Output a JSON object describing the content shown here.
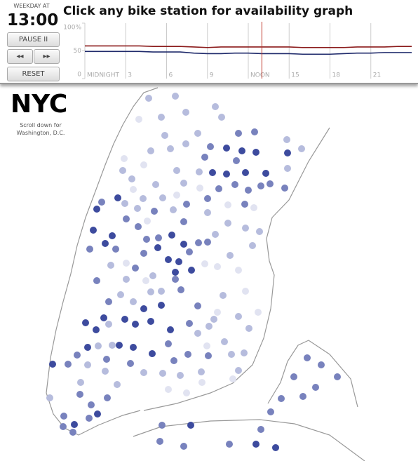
{
  "header": {
    "day_label": "WEEKDAY AT",
    "time": "13:00",
    "title": "Click any bike station for availability graph"
  },
  "controls": {
    "pause": "PAUSE II",
    "back": "◂◂",
    "forward": "▸▸",
    "reset": "RESET"
  },
  "chart_data": {
    "type": "line",
    "x": [
      0,
      1,
      2,
      3,
      4,
      5,
      6,
      7,
      8,
      9,
      10,
      11,
      12,
      13,
      14,
      15,
      16,
      17,
      18,
      19,
      20,
      21,
      22,
      23,
      24
    ],
    "series": [
      {
        "color": "#8b1a1a",
        "values": [
          59,
          59,
          59,
          59,
          59,
          58,
          58,
          58,
          57,
          56,
          57,
          57,
          57,
          57,
          57,
          57,
          56,
          56,
          56,
          56,
          57,
          57,
          57,
          58,
          58
        ]
      },
      {
        "color": "#1f2a6b",
        "values": [
          49,
          49,
          49,
          49,
          49,
          48,
          48,
          48,
          46,
          45,
          45,
          46,
          46,
          45,
          45,
          45,
          44,
          44,
          44,
          45,
          46,
          46,
          47,
          47,
          47
        ]
      }
    ],
    "now": 13,
    "now_color": "#c0392b",
    "xlim": [
      0,
      24
    ],
    "xticks": [
      {
        "value": 0,
        "label": "MIDNIGHT"
      },
      3,
      6,
      9,
      {
        "value": 12,
        "label": "NOON"
      },
      15,
      18,
      21
    ],
    "ylim": [
      0,
      100
    ],
    "yticks": [
      0,
      50,
      {
        "value": 100,
        "label": "100%"
      }
    ],
    "grid": true
  },
  "map": {
    "city": "NYC",
    "note": [
      "Scroll down for",
      "Washington, D.C."
    ]
  }
}
